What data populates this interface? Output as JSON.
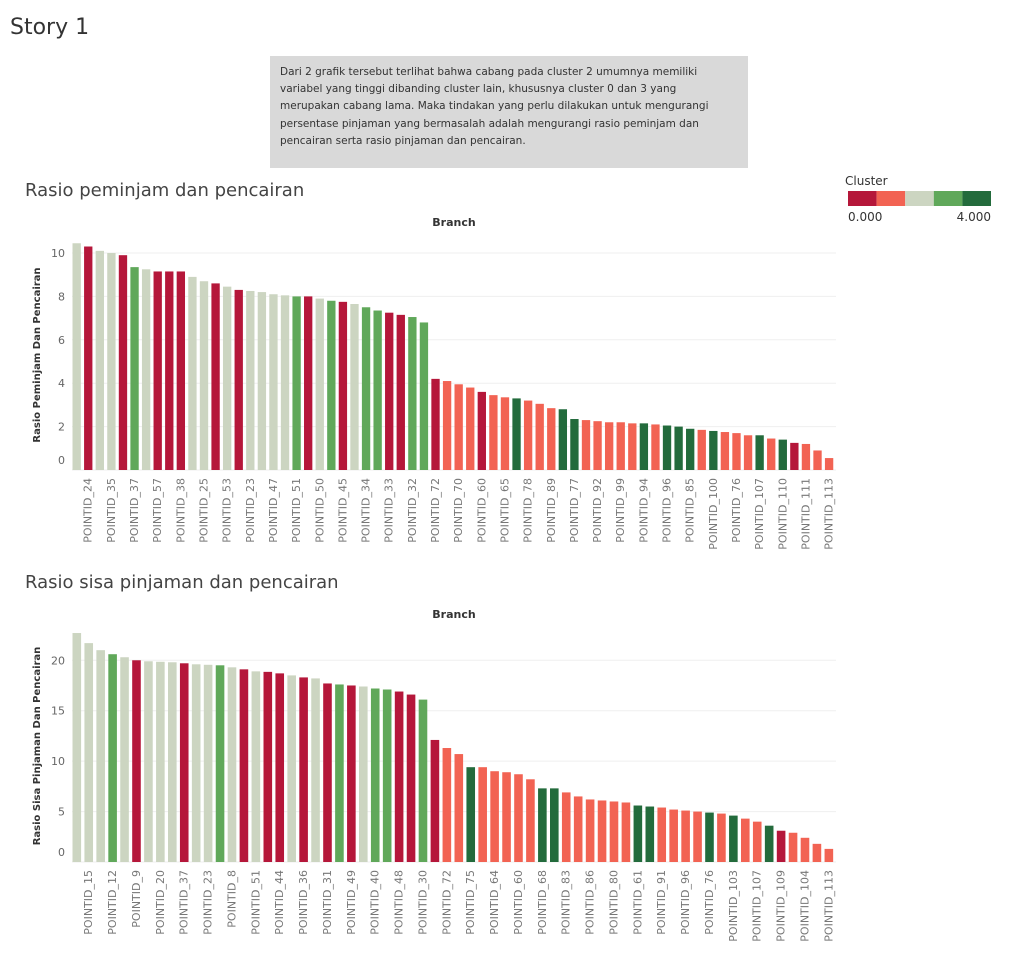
{
  "title": "Story 1",
  "annotation": "Dari 2 grafik tersebut terlihat bahwa cabang pada cluster 2 umumnya memiliki variabel yang tinggi dibanding cluster lain, khususnya cluster 0 dan 3 yang merupakan cabang lama. Maka tindakan yang perlu dilakukan untuk mengurangi persentase pinjaman yang bermasalah adalah mengurangi rasio peminjam dan pencairan serta rasio pinjaman dan pencairan.",
  "legend": {
    "title": "Cluster",
    "colors": [
      "#b5173a",
      "#f26353",
      "#ccd5c1",
      "#60a85a",
      "#236b3c"
    ],
    "labels": [
      "0.000",
      "4.000"
    ]
  },
  "chart_data": [
    {
      "type": "bar",
      "title": "Rasio peminjam dan pencairan",
      "x_label": "Branch",
      "y_label": "Rasio Peminjam Dan Pencairan",
      "categories": [
        null,
        "POINTID_24",
        null,
        "POINTID_35",
        null,
        "POINTID_37",
        null,
        "POINTID_57",
        null,
        "POINTID_38",
        null,
        "POINTID_25",
        null,
        "POINTID_53",
        null,
        "POINTID_23",
        null,
        "POINTID_47",
        null,
        "POINTID_51",
        null,
        "POINTID_50",
        null,
        "POINTID_45",
        null,
        "POINTID_34",
        null,
        "POINTID_33",
        null,
        "POINTID_32",
        null,
        "POINTID_72",
        null,
        "POINTID_70",
        null,
        "POINTID_60",
        null,
        "POINTID_65",
        null,
        "POINTID_78",
        null,
        "POINTID_89",
        null,
        "POINTID_77",
        null,
        "POINTID_92",
        null,
        "POINTID_99",
        null,
        "POINTID_94",
        null,
        "POINTID_96",
        null,
        "POINTID_85",
        null,
        "POINTID_100",
        null,
        "POINTID_76",
        null,
        "POINTID_107",
        null,
        "POINTID_110",
        null,
        "POINTID_111",
        null,
        "POINTID_113"
      ],
      "values": [
        10.45,
        10.3,
        10.1,
        10.0,
        9.9,
        9.35,
        9.25,
        9.15,
        9.15,
        9.15,
        8.9,
        8.7,
        8.6,
        8.45,
        8.3,
        8.25,
        8.2,
        8.1,
        8.05,
        8.0,
        8.0,
        7.9,
        7.8,
        7.75,
        7.65,
        7.5,
        7.35,
        7.25,
        7.15,
        7.05,
        6.8,
        4.2,
        4.1,
        3.95,
        3.8,
        3.6,
        3.45,
        3.35,
        3.3,
        3.2,
        3.05,
        2.85,
        2.8,
        2.35,
        2.3,
        2.25,
        2.2,
        2.2,
        2.15,
        2.15,
        2.1,
        2.05,
        2.0,
        1.9,
        1.85,
        1.8,
        1.75,
        1.7,
        1.6,
        1.6,
        1.45,
        1.4,
        1.25,
        1.2,
        0.9,
        0.55
      ],
      "colors": [
        "#ccd5c1",
        "#b5173a",
        "#ccd5c1",
        "#ccd5c1",
        "#b5173a",
        "#60a85a",
        "#ccd5c1",
        "#b5173a",
        "#b5173a",
        "#b5173a",
        "#ccd5c1",
        "#ccd5c1",
        "#b5173a",
        "#ccd5c1",
        "#b5173a",
        "#ccd5c1",
        "#ccd5c1",
        "#ccd5c1",
        "#ccd5c1",
        "#60a85a",
        "#b5173a",
        "#ccd5c1",
        "#60a85a",
        "#b5173a",
        "#ccd5c1",
        "#60a85a",
        "#60a85a",
        "#b5173a",
        "#b5173a",
        "#60a85a",
        "#60a85a",
        "#b5173a",
        "#f26353",
        "#f26353",
        "#f26353",
        "#b5173a",
        "#f26353",
        "#f26353",
        "#236b3c",
        "#f26353",
        "#f26353",
        "#f26353",
        "#236b3c",
        "#236b3c",
        "#f26353",
        "#f26353",
        "#f26353",
        "#f26353",
        "#f26353",
        "#236b3c",
        "#f26353",
        "#236b3c",
        "#236b3c",
        "#236b3c",
        "#f26353",
        "#236b3c",
        "#f26353",
        "#f26353",
        "#f26353",
        "#236b3c",
        "#f26353",
        "#236b3c",
        "#b5173a",
        "#f26353",
        "#f26353",
        "#f26353"
      ],
      "ylim": [
        0,
        10.6
      ],
      "yticks": [
        0,
        2,
        4,
        6,
        8,
        10
      ],
      "grid": true
    },
    {
      "type": "bar",
      "title": "Rasio sisa pinjaman dan pencairan",
      "x_label": "Branch",
      "y_label": "Rasio Sisa Pinjaman Dan Pencairan",
      "categories": [
        null,
        "POINTID_15",
        null,
        "POINTID_12",
        null,
        "POINTID_9",
        null,
        "POINTID_20",
        null,
        "POINTID_37",
        null,
        "POINTID_23",
        null,
        "POINTID_8",
        null,
        "POINTID_51",
        null,
        "POINTID_44",
        null,
        "POINTID_36",
        null,
        "POINTID_31",
        null,
        "POINTID_49",
        null,
        "POINTID_40",
        null,
        "POINTID_48",
        null,
        "POINTID_30",
        null,
        "POINTID_72",
        null,
        "POINTID_75",
        null,
        "POINTID_64",
        null,
        "POINTID_60",
        null,
        "POINTID_68",
        null,
        "POINTID_83",
        null,
        "POINTID_86",
        null,
        "POINTID_80",
        null,
        "POINTID_61",
        null,
        "POINTID_91",
        null,
        "POINTID_96",
        null,
        "POINTID_76",
        null,
        "POINTID_103",
        null,
        "POINTID_107",
        null,
        "POINTID_109",
        null,
        "POINTID_104",
        null,
        "POINTID_113"
      ],
      "values": [
        22.7,
        21.7,
        21.0,
        20.6,
        20.3,
        20.0,
        19.9,
        19.85,
        19.8,
        19.7,
        19.6,
        19.55,
        19.5,
        19.3,
        19.1,
        18.9,
        18.85,
        18.7,
        18.5,
        18.3,
        18.2,
        17.7,
        17.6,
        17.5,
        17.4,
        17.2,
        17.1,
        16.9,
        16.6,
        16.1,
        12.1,
        11.3,
        10.7,
        9.4,
        9.4,
        9.0,
        8.9,
        8.7,
        8.2,
        7.3,
        7.3,
        6.9,
        6.5,
        6.2,
        6.1,
        6.0,
        5.9,
        5.6,
        5.5,
        5.4,
        5.2,
        5.1,
        5.0,
        4.9,
        4.8,
        4.6,
        4.3,
        4.0,
        3.6,
        3.1,
        2.9,
        2.4,
        1.8,
        1.3
      ],
      "colors": [
        "#ccd5c1",
        "#ccd5c1",
        "#ccd5c1",
        "#60a85a",
        "#ccd5c1",
        "#b5173a",
        "#ccd5c1",
        "#ccd5c1",
        "#ccd5c1",
        "#b5173a",
        "#ccd5c1",
        "#ccd5c1",
        "#60a85a",
        "#ccd5c1",
        "#b5173a",
        "#ccd5c1",
        "#b5173a",
        "#b5173a",
        "#ccd5c1",
        "#b5173a",
        "#ccd5c1",
        "#b5173a",
        "#60a85a",
        "#b5173a",
        "#ccd5c1",
        "#60a85a",
        "#60a85a",
        "#b5173a",
        "#b5173a",
        "#60a85a",
        "#b5173a",
        "#f26353",
        "#f26353",
        "#236b3c",
        "#f26353",
        "#f26353",
        "#f26353",
        "#f26353",
        "#f26353",
        "#236b3c",
        "#236b3c",
        "#f26353",
        "#f26353",
        "#f26353",
        "#f26353",
        "#f26353",
        "#f26353",
        "#236b3c",
        "#236b3c",
        "#f26353",
        "#f26353",
        "#f26353",
        "#f26353",
        "#236b3c",
        "#f26353",
        "#236b3c",
        "#f26353",
        "#f26353",
        "#236b3c",
        "#b5173a",
        "#f26353",
        "#f26353",
        "#f26353",
        "#f26353"
      ],
      "ylim": [
        0,
        23
      ],
      "yticks": [
        0,
        5,
        10,
        15,
        20
      ],
      "grid": true
    }
  ]
}
